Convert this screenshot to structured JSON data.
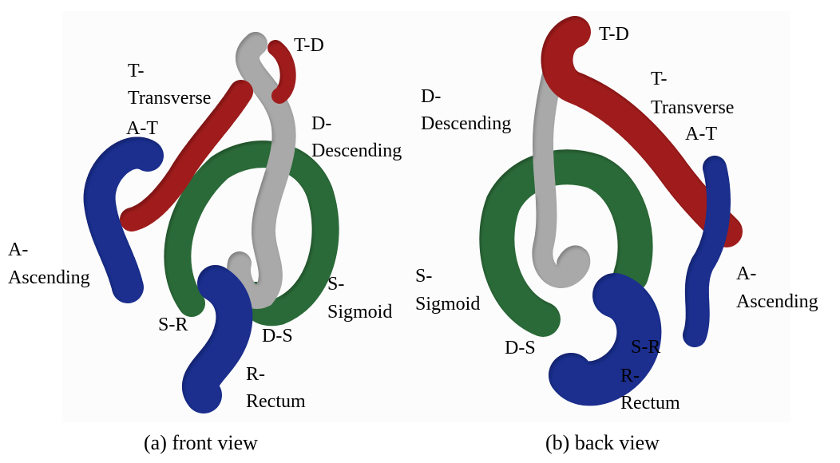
{
  "colors": {
    "ascending": "#1a2f8e",
    "transverse": "#a01b1b",
    "descending": "#a9a9a9",
    "sigmoid": "#2c6b39",
    "rectum": "#1a2f8e",
    "background": "#fcfcfc"
  },
  "front": {
    "caption": "(a) front view",
    "labels": {
      "td": "T-D",
      "t_prefix": "T-",
      "t_name": "Transverse",
      "at": "A-T",
      "d_prefix": "D-",
      "d_name": "Descending",
      "a_prefix": "A-",
      "a_name": "Ascending",
      "s_prefix": "S-",
      "s_name": "Sigmoid",
      "sr": "S-R",
      "ds": "D-S",
      "r_prefix": "R-",
      "r_name": "Rectum"
    }
  },
  "back": {
    "caption": "(b) back view",
    "labels": {
      "td": "T-D",
      "d_prefix": "D-",
      "d_name": "Descending",
      "t_prefix": "T-",
      "t_name": "Transverse",
      "at": "A-T",
      "s_prefix": "S-",
      "s_name": "Sigmoid",
      "a_prefix": "A-",
      "a_name": "Ascending",
      "ds": "D-S",
      "sr": "S-R",
      "r_prefix": "R-",
      "r_name": "Rectum"
    }
  }
}
